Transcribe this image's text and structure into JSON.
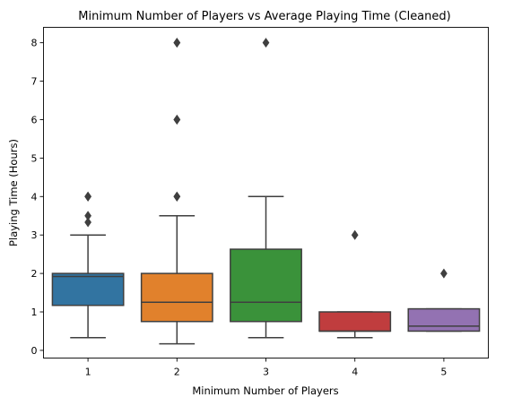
{
  "chart_data": {
    "type": "box",
    "title": "Minimum Number of Players vs Average Playing Time (Cleaned)",
    "xlabel": "Minimum Number of Players",
    "ylabel": "Playing Time (Hours)",
    "categories": [
      "1",
      "2",
      "3",
      "4",
      "5"
    ],
    "ylim": [
      -0.2,
      8.4
    ],
    "yticks": [
      0,
      1,
      2,
      3,
      4,
      5,
      6,
      7,
      8
    ],
    "grid": false,
    "boxes": [
      {
        "category": "1",
        "color": "#3274a1",
        "whislo": 0.33,
        "q1": 1.17,
        "median": 1.92,
        "q3": 2.0,
        "whishi": 3.0,
        "fliers": [
          3.33,
          3.5,
          4.0,
          4.0
        ]
      },
      {
        "category": "2",
        "color": "#e1812c",
        "whislo": 0.17,
        "q1": 0.75,
        "median": 1.25,
        "q3": 2.0,
        "whishi": 3.5,
        "fliers": [
          4.0,
          4.0,
          6.0,
          6.0,
          8.0,
          8.0
        ]
      },
      {
        "category": "3",
        "color": "#3a923a",
        "whislo": 0.33,
        "q1": 0.75,
        "median": 1.25,
        "q3": 2.63,
        "whishi": 4.0,
        "fliers": [
          8.0
        ]
      },
      {
        "category": "4",
        "color": "#c03d3e",
        "whislo": 0.33,
        "q1": 0.5,
        "median": 0.5,
        "q3": 1.0,
        "whishi": 1.0,
        "fliers": [
          3.0
        ]
      },
      {
        "category": "5",
        "color": "#9372b2",
        "whislo": 0.5,
        "q1": 0.5,
        "median": 0.63,
        "q3": 1.08,
        "whishi": 1.08,
        "fliers": [
          2.0
        ]
      }
    ]
  }
}
